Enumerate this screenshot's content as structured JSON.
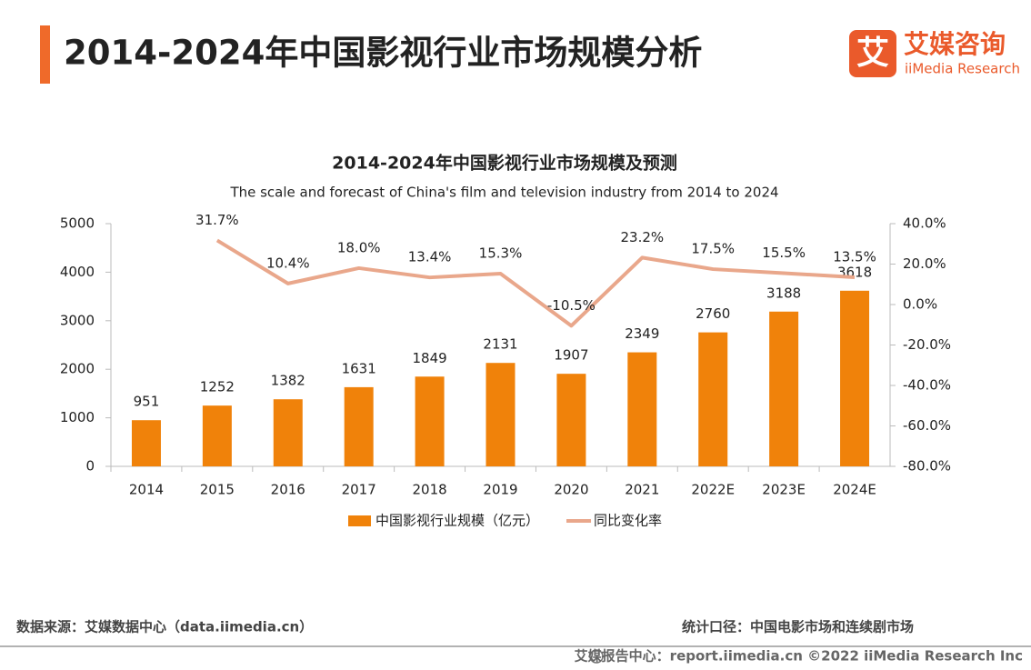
{
  "header": {
    "title": "2014-2024年中国影视行业市场规模分析",
    "logo_mark": "艾",
    "logo_name": "艾媒咨询",
    "logo_sub": "iiMedia Research"
  },
  "chart_data": {
    "type": "combo",
    "title": "2014-2024年中国影视行业市场规模及预测",
    "subtitle": "The scale and forecast of China's film and television industry from 2014 to 2024",
    "categories": [
      "2014",
      "2015",
      "2016",
      "2017",
      "2018",
      "2019",
      "2020",
      "2021",
      "2022E",
      "2023E",
      "2024E"
    ],
    "series": [
      {
        "name": "中国影视行业规模（亿元）",
        "type": "bar",
        "color": "#f0820a",
        "values": [
          951,
          1252,
          1382,
          1631,
          1849,
          2131,
          1907,
          2349,
          2760,
          3188,
          3618
        ]
      },
      {
        "name": "同比变化率",
        "type": "line",
        "axis": "y2",
        "color": "#e9a78b",
        "values": [
          null,
          31.7,
          10.4,
          18.0,
          13.4,
          15.3,
          -10.5,
          23.2,
          17.5,
          15.5,
          13.5
        ],
        "value_labels": [
          null,
          "31.7%",
          "10.4%",
          "18.0%",
          "13.4%",
          "15.3%",
          "-10.5%",
          "23.2%",
          "17.5%",
          "15.5%",
          "13.5%"
        ]
      }
    ],
    "ylim": [
      0,
      5000
    ],
    "yticks": [
      0,
      1000,
      2000,
      3000,
      4000,
      5000
    ],
    "y2lim": [
      -80,
      40
    ],
    "y2ticks": [
      {
        "value": -80,
        "label": "-80.0%"
      },
      {
        "value": -60,
        "label": "-60.0%"
      },
      {
        "value": -40,
        "label": "-40.0%"
      },
      {
        "value": -20,
        "label": "-20.0%"
      },
      {
        "value": 0,
        "label": "0.0%"
      },
      {
        "value": 20,
        "label": "20.0%"
      },
      {
        "value": 40,
        "label": "40.0%"
      }
    ],
    "legend": "bottom"
  },
  "footer": {
    "source": "数据来源：艾媒数据中心（data.iimedia.cn）",
    "scope": "统计口径：中国电影市场和连续剧市场",
    "credit": "艾媒报告中心：report.iimedia.cn ©2022 iiMedia Research Inc"
  }
}
